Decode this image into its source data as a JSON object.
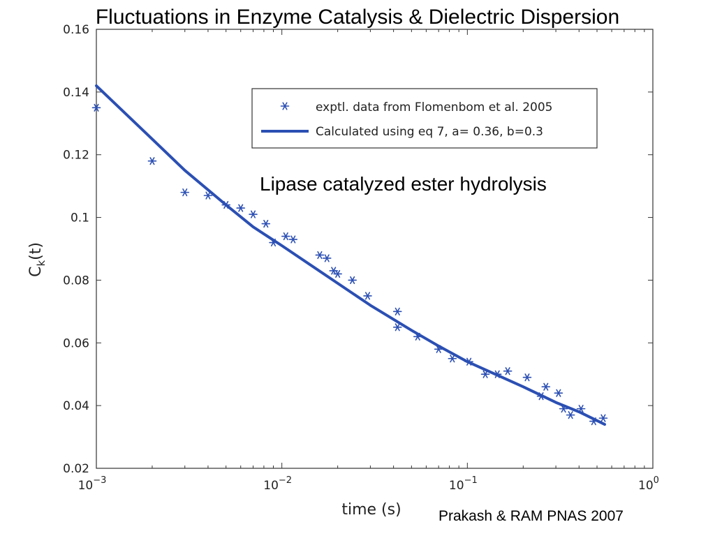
{
  "slide": {
    "title": "Fluctuations in Enzyme Catalysis & Dielectric Dispersion",
    "annotation": "Lipase catalyzed ester hydrolysis",
    "credit": "Prakash & RAM PNAS 2007"
  },
  "chart_data": {
    "type": "scatter",
    "xlabel": "time (s)",
    "ylabel_main": "C",
    "ylabel_sub": "k",
    "ylabel_suffix": "(t)",
    "x_scale": "log",
    "xlim": [
      0.001,
      1
    ],
    "ylim": [
      0.02,
      0.16
    ],
    "x_ticks": [
      {
        "value": 0.001,
        "base": "10",
        "exp": "−3"
      },
      {
        "value": 0.01,
        "base": "10",
        "exp": "−2"
      },
      {
        "value": 0.1,
        "base": "10",
        "exp": "−1"
      },
      {
        "value": 1,
        "base": "10",
        "exp": "0"
      }
    ],
    "y_ticks": [
      "0.02",
      "0.04",
      "0.06",
      "0.08",
      "0.1",
      "0.12",
      "0.14",
      "0.16"
    ],
    "grid": false,
    "legend_position": "top-right",
    "colors": {
      "series": "#2b4fb3",
      "axis": "#333333"
    },
    "series": [
      {
        "name": "exptl. data from Flomenbom et al. 2005",
        "kind": "scatter",
        "marker": "asterisk",
        "points": [
          [
            0.001,
            0.135
          ],
          [
            0.002,
            0.118
          ],
          [
            0.003,
            0.108
          ],
          [
            0.004,
            0.107
          ],
          [
            0.005,
            0.104
          ],
          [
            0.006,
            0.103
          ],
          [
            0.007,
            0.101
          ],
          [
            0.0082,
            0.098
          ],
          [
            0.009,
            0.092
          ],
          [
            0.0105,
            0.094
          ],
          [
            0.0115,
            0.093
          ],
          [
            0.016,
            0.088
          ],
          [
            0.0175,
            0.087
          ],
          [
            0.019,
            0.083
          ],
          [
            0.02,
            0.082
          ],
          [
            0.024,
            0.08
          ],
          [
            0.029,
            0.075
          ],
          [
            0.042,
            0.07
          ],
          [
            0.042,
            0.065
          ],
          [
            0.054,
            0.062
          ],
          [
            0.07,
            0.058
          ],
          [
            0.083,
            0.055
          ],
          [
            0.102,
            0.054
          ],
          [
            0.125,
            0.05
          ],
          [
            0.145,
            0.05
          ],
          [
            0.165,
            0.051
          ],
          [
            0.21,
            0.049
          ],
          [
            0.25,
            0.043
          ],
          [
            0.265,
            0.046
          ],
          [
            0.31,
            0.044
          ],
          [
            0.33,
            0.039
          ],
          [
            0.36,
            0.037
          ],
          [
            0.41,
            0.039
          ],
          [
            0.48,
            0.035
          ],
          [
            0.54,
            0.036
          ]
        ]
      },
      {
        "name": "Calculated using eq 7, a= 0.36, b=0.3",
        "kind": "line",
        "points": [
          [
            0.001,
            0.142
          ],
          [
            0.002,
            0.125
          ],
          [
            0.003,
            0.115
          ],
          [
            0.005,
            0.104
          ],
          [
            0.007,
            0.097
          ],
          [
            0.01,
            0.091
          ],
          [
            0.02,
            0.079
          ],
          [
            0.03,
            0.072
          ],
          [
            0.05,
            0.064
          ],
          [
            0.07,
            0.059
          ],
          [
            0.1,
            0.054
          ],
          [
            0.2,
            0.046
          ],
          [
            0.3,
            0.041
          ],
          [
            0.4,
            0.038
          ],
          [
            0.55,
            0.034
          ]
        ]
      }
    ]
  }
}
